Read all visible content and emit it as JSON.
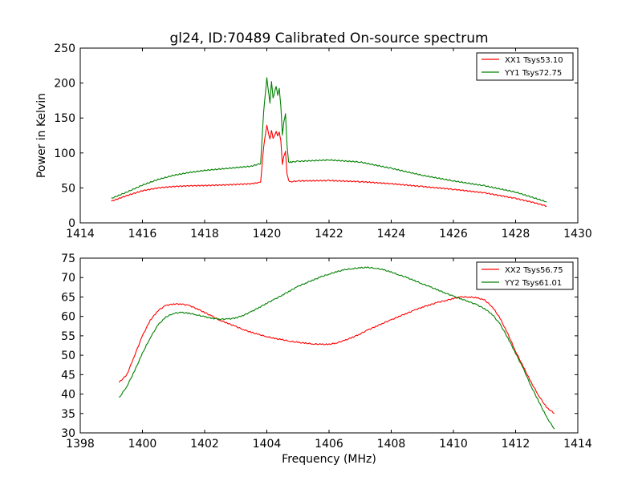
{
  "chart_data": [
    {
      "type": "line",
      "title": "gl24, ID:70489 Calibrated On-source spectrum",
      "xlabel": "",
      "ylabel": "Power in Kelvin",
      "xlim": [
        1414,
        1430
      ],
      "ylim": [
        0,
        250
      ],
      "xticks": [
        "1414",
        "1416",
        "1418",
        "1420",
        "1422",
        "1424",
        "1426",
        "1428",
        "1430"
      ],
      "yticks": [
        "0",
        "50",
        "100",
        "150",
        "200",
        "250"
      ],
      "legend_position": "top-right",
      "series": [
        {
          "name": "XX1 Tsys53.10",
          "color": "#ff0000",
          "x": [
            1415.0,
            1415.5,
            1416.0,
            1416.5,
            1417.0,
            1417.5,
            1418.0,
            1418.5,
            1419.0,
            1419.5,
            1419.8,
            1419.9,
            1420.0,
            1420.1,
            1420.15,
            1420.2,
            1420.3,
            1420.35,
            1420.4,
            1420.45,
            1420.5,
            1420.55,
            1420.6,
            1420.65,
            1420.7,
            1420.8,
            1421.0,
            1422.0,
            1423.0,
            1424.0,
            1425.0,
            1426.0,
            1427.0,
            1428.0,
            1428.5,
            1429.0
          ],
          "y": [
            31,
            39,
            46,
            50,
            52,
            53,
            53.5,
            54,
            55,
            56,
            58,
            110,
            139,
            120,
            133,
            120,
            131,
            125,
            129,
            118,
            84,
            95,
            103,
            70,
            60,
            59,
            60,
            60.5,
            59,
            56,
            52,
            48,
            43,
            35,
            30,
            24
          ]
        },
        {
          "name": "YY1 Tsys72.75",
          "color": "#008000",
          "x": [
            1415.0,
            1415.5,
            1416.0,
            1416.5,
            1417.0,
            1417.5,
            1418.0,
            1418.5,
            1419.0,
            1419.5,
            1419.8,
            1419.9,
            1420.0,
            1420.1,
            1420.15,
            1420.2,
            1420.3,
            1420.35,
            1420.4,
            1420.45,
            1420.5,
            1420.55,
            1420.6,
            1420.65,
            1420.7,
            1420.8,
            1421.0,
            1422.0,
            1423.0,
            1424.0,
            1425.0,
            1426.0,
            1427.0,
            1428.0,
            1428.5,
            1429.0
          ],
          "y": [
            35,
            44,
            54,
            62,
            68,
            72,
            75,
            77,
            79,
            81,
            85,
            160,
            207,
            172,
            202,
            178,
            196,
            182,
            192,
            168,
            125,
            145,
            157,
            110,
            87,
            87,
            88,
            90,
            87,
            78,
            68,
            60,
            53,
            44,
            37,
            30
          ]
        }
      ]
    },
    {
      "type": "line",
      "title": "",
      "xlabel": "Frequency (MHz)",
      "ylabel": "",
      "xlim": [
        1398,
        1414
      ],
      "ylim": [
        30,
        75
      ],
      "xticks": [
        "1398",
        "1400",
        "1402",
        "1404",
        "1406",
        "1408",
        "1410",
        "1412",
        "1414"
      ],
      "yticks": [
        "30",
        "35",
        "40",
        "45",
        "50",
        "55",
        "60",
        "65",
        "70",
        "75"
      ],
      "legend_position": "top-right",
      "series": [
        {
          "name": "XX2 Tsys56.75",
          "color": "#ff0000",
          "x": [
            1399.25,
            1399.5,
            1399.75,
            1400.0,
            1400.25,
            1400.5,
            1400.75,
            1401.0,
            1401.25,
            1401.5,
            1401.75,
            1402.0,
            1402.25,
            1402.5,
            1402.75,
            1403.0,
            1403.25,
            1403.5,
            1403.75,
            1404.0,
            1404.25,
            1404.5,
            1404.75,
            1405.0,
            1405.25,
            1405.5,
            1405.75,
            1406.0,
            1406.25,
            1406.5,
            1406.75,
            1407.0,
            1407.25,
            1407.5,
            1407.75,
            1408.0,
            1408.25,
            1408.5,
            1408.75,
            1409.0,
            1409.25,
            1409.5,
            1409.75,
            1410.0,
            1410.25,
            1410.5,
            1410.75,
            1411.0,
            1411.25,
            1411.5,
            1411.75,
            1412.0,
            1412.25,
            1412.5,
            1412.75,
            1413.0,
            1413.25
          ],
          "y": [
            43,
            45,
            50,
            55,
            59,
            61.5,
            62.8,
            63.2,
            63.2,
            62.8,
            62.0,
            61.0,
            60.0,
            59.0,
            58.2,
            57.4,
            56.6,
            55.9,
            55.3,
            54.8,
            54.3,
            54.0,
            53.6,
            53.3,
            53.1,
            52.9,
            52.8,
            52.8,
            53.2,
            53.8,
            54.6,
            55.5,
            56.5,
            57.4,
            58.3,
            59.1,
            60.0,
            60.8,
            61.6,
            62.4,
            63.0,
            63.6,
            64.1,
            64.6,
            65.0,
            65.0,
            64.8,
            64.2,
            62.5,
            59.5,
            55.5,
            51.0,
            47.0,
            43.0,
            39.5,
            36.5,
            35.0
          ]
        },
        {
          "name": "YY2 Tsys61.01",
          "color": "#008000",
          "x": [
            1399.25,
            1399.5,
            1399.75,
            1400.0,
            1400.25,
            1400.5,
            1400.75,
            1401.0,
            1401.25,
            1401.5,
            1401.75,
            1402.0,
            1402.25,
            1402.5,
            1402.75,
            1403.0,
            1403.25,
            1403.5,
            1403.75,
            1404.0,
            1404.25,
            1404.5,
            1404.75,
            1405.0,
            1405.25,
            1405.5,
            1405.75,
            1406.0,
            1406.25,
            1406.5,
            1406.75,
            1407.0,
            1407.25,
            1407.5,
            1407.75,
            1408.0,
            1408.25,
            1408.5,
            1408.75,
            1409.0,
            1409.25,
            1409.5,
            1409.75,
            1410.0,
            1410.25,
            1410.5,
            1410.75,
            1411.0,
            1411.25,
            1411.5,
            1411.75,
            1412.0,
            1412.25,
            1412.5,
            1412.75,
            1413.0,
            1413.25
          ],
          "y": [
            39,
            42,
            46,
            50.5,
            54.5,
            57.8,
            59.8,
            60.8,
            61.0,
            60.8,
            60.4,
            59.9,
            59.5,
            59.3,
            59.3,
            59.6,
            60.3,
            61.2,
            62.3,
            63.4,
            64.4,
            65.5,
            66.6,
            67.7,
            68.6,
            69.4,
            70.2,
            70.9,
            71.5,
            72.0,
            72.3,
            72.5,
            72.6,
            72.4,
            72.0,
            71.4,
            70.7,
            70.0,
            69.2,
            68.4,
            67.6,
            66.8,
            66.0,
            65.2,
            64.5,
            63.8,
            63.0,
            62.0,
            60.5,
            58.0,
            54.5,
            50.5,
            46.5,
            42.0,
            38.0,
            34.0,
            31.0
          ]
        }
      ]
    }
  ]
}
